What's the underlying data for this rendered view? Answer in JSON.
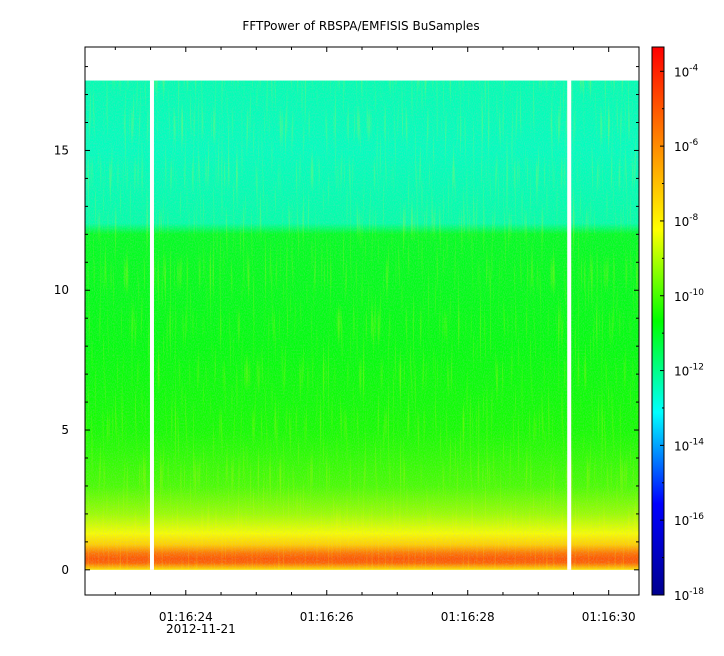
{
  "chart_data": {
    "type": "heatmap",
    "title": "FFTPower of RBSPA/EMFISIS  BuSamples",
    "xlabel": "",
    "ylabel": "",
    "x_ticks": [
      {
        "value": 24,
        "label": "01:16:24"
      },
      {
        "value": 26,
        "label": "01:16:26"
      },
      {
        "value": 28,
        "label": "01:16:28"
      },
      {
        "value": 30,
        "label": "01:16:30"
      }
    ],
    "x_date_label": "2012-11-21",
    "x_minor_ticks": [
      23.0,
      23.5,
      24.5,
      25.0,
      25.5,
      26.5,
      27.0,
      27.5,
      28.5,
      29.0,
      29.5
    ],
    "xlim_seconds_after_01_16": [
      22.57,
      30.43
    ],
    "y_ticks": [
      0,
      5,
      10,
      15
    ],
    "ylim": [
      -0.9,
      18.7
    ],
    "data_ylim": [
      0,
      17.5
    ],
    "gaps_seconds_after_01_16": [
      23.52,
      29.44
    ],
    "colorbar": {
      "scale": "log",
      "range_exponents": [
        -18,
        -3.35
      ],
      "tick_exponents": [
        -18,
        -16,
        -14,
        -12,
        -10,
        -8,
        -6,
        -4
      ],
      "tick_base": "10",
      "colormap": [
        "#00008f",
        "#0000ff",
        "#00ffff",
        "#00ff00",
        "#ffff00",
        "#ff8000",
        "#ff0000"
      ]
    },
    "power_profile_log10": [
      {
        "y": 0.0,
        "v": -7.8
      },
      {
        "y": 0.25,
        "v": -5.2
      },
      {
        "y": 0.4,
        "v": -5.0
      },
      {
        "y": 0.6,
        "v": -5.6
      },
      {
        "y": 0.9,
        "v": -7.3
      },
      {
        "y": 1.3,
        "v": -8.3
      },
      {
        "y": 2.0,
        "v": -9.2
      },
      {
        "y": 3.0,
        "v": -10.0
      },
      {
        "y": 5.0,
        "v": -10.5
      },
      {
        "y": 8.0,
        "v": -10.8
      },
      {
        "y": 12.0,
        "v": -11.0
      },
      {
        "y": 12.4,
        "v": -12.3
      },
      {
        "y": 15.0,
        "v": -12.5
      },
      {
        "y": 17.5,
        "v": -12.4
      }
    ]
  }
}
